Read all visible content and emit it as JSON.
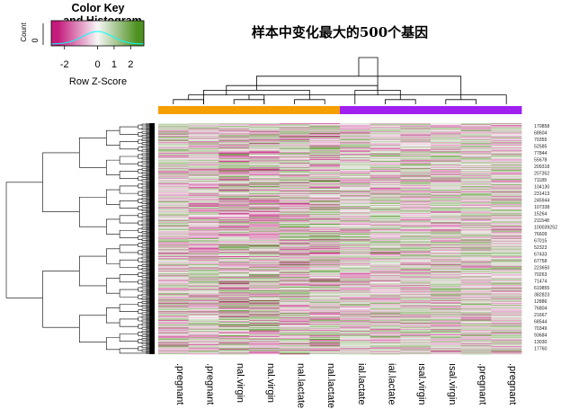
{
  "chart_data": {
    "type": "heatmap",
    "title": "样本中变化最大的500个基因",
    "color_key": {
      "title_line1": "Color Key",
      "title_line2": "and Histogram",
      "ylabel": "Count",
      "y_ticks": [
        "0"
      ],
      "xlabel": "Row Z-Score",
      "x_ticks": [
        "-2",
        "0",
        "1",
        "2"
      ],
      "x_tick_values": [
        -2,
        0,
        1,
        2
      ],
      "range": [
        -2.8,
        2.8
      ],
      "colors": {
        "low": "#c51b7d",
        "mid": "#f7f7f7",
        "high": "#4d9221",
        "histogram": "#00ffff"
      }
    },
    "columns": [
      {
        "label": ".pregnant",
        "group": "orange"
      },
      {
        "label": ".pregnant",
        "group": "orange"
      },
      {
        "label": "nal.virgin",
        "group": "orange"
      },
      {
        "label": "nal.virgin",
        "group": "orange"
      },
      {
        "label": "nal.lactate",
        "group": "orange"
      },
      {
        "label": "nal.lactate",
        "group": "orange"
      },
      {
        "label": "ial.lactate",
        "group": "purple"
      },
      {
        "label": "ial.lactate",
        "group": "purple"
      },
      {
        "label": "ısal.virgin",
        "group": "purple"
      },
      {
        "label": "ısal.virgin",
        "group": "purple"
      },
      {
        "label": ".pregnant",
        "group": "purple"
      },
      {
        "label": ".pregnant",
        "group": "purple"
      }
    ],
    "group_colors": {
      "orange": "#f59f00",
      "purple": "#a020f0"
    },
    "row_labels": [
      "170858",
      "68604",
      "70355",
      "52585",
      "77844",
      "55678",
      "209318",
      "207352",
      "71189",
      "104130",
      "231413",
      "245944",
      "107338",
      "15264",
      "211548",
      "100039252",
      "76609",
      "67015",
      "52323",
      "67433",
      "67758",
      "223650",
      "70263",
      "71474",
      "619855",
      "382823",
      "12886",
      "76804",
      "21667",
      "68544",
      "70349",
      "93684",
      "13030",
      "17760"
    ],
    "row_count": 500,
    "column_dendrogram": {
      "merges": [
        [
          2,
          3
        ],
        [
          4,
          5
        ],
        [
          0,
          1
        ],
        [
          7,
          8
        ],
        [
          9,
          10
        ],
        [
          11,
          12
        ],
        [
          1,
          13
        ],
        [
          3,
          14
        ],
        [
          6,
          15
        ],
        [
          16,
          18
        ],
        [
          17,
          19
        ],
        [
          20,
          21
        ]
      ],
      "heights": [
        1,
        1,
        1,
        1,
        1,
        2,
        3,
        2,
        3,
        6,
        4,
        10
      ]
    }
  }
}
